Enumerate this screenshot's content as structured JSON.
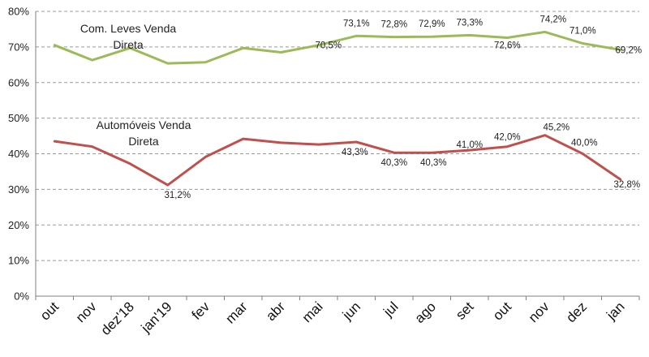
{
  "chart_data": {
    "type": "line",
    "categories": [
      "out",
      "nov",
      "dez'18",
      "jan'19",
      "fev",
      "mar",
      "abr",
      "mai",
      "jun",
      "jul",
      "ago",
      "set",
      "out",
      "nov",
      "dez",
      "jan"
    ],
    "yticks": [
      "0%",
      "10%",
      "20%",
      "30%",
      "40%",
      "50%",
      "60%",
      "70%",
      "80%"
    ],
    "ylim": [
      0,
      80
    ],
    "grid": true,
    "series": [
      {
        "name": "Com. Leves Venda Direta",
        "name_lines": [
          "Com. Leves Venda",
          "Direta"
        ],
        "color": "#9bbb59",
        "values": [
          70.5,
          66.3,
          69.7,
          65.4,
          65.7,
          69.7,
          68.5,
          70.5,
          73.1,
          72.8,
          72.9,
          73.3,
          72.6,
          74.2,
          71.0,
          69.2
        ],
        "labels": [
          "",
          "",
          "",
          "",
          "",
          "",
          "",
          "70,5%",
          "73,1%",
          "72,8%",
          "72,9%",
          "73,3%",
          "72,6%",
          "74,2%",
          "71,0%",
          "69,2%"
        ]
      },
      {
        "name": "Automóveis Venda Direta",
        "name_lines": [
          "Automóveis Venda",
          "Direta"
        ],
        "color": "#c0504d",
        "values": [
          43.5,
          42.0,
          37.2,
          31.2,
          39.1,
          44.2,
          43.1,
          42.6,
          43.3,
          40.3,
          40.3,
          41.0,
          42.0,
          45.2,
          40.0,
          32.8
        ],
        "labels": [
          "",
          "",
          "",
          "31,2%",
          "",
          "",
          "",
          "",
          "43,3%",
          "40,3%",
          "40,3%",
          "41,0%",
          "42,0%",
          "45,2%",
          "40,0%",
          "32,8%"
        ]
      }
    ]
  }
}
